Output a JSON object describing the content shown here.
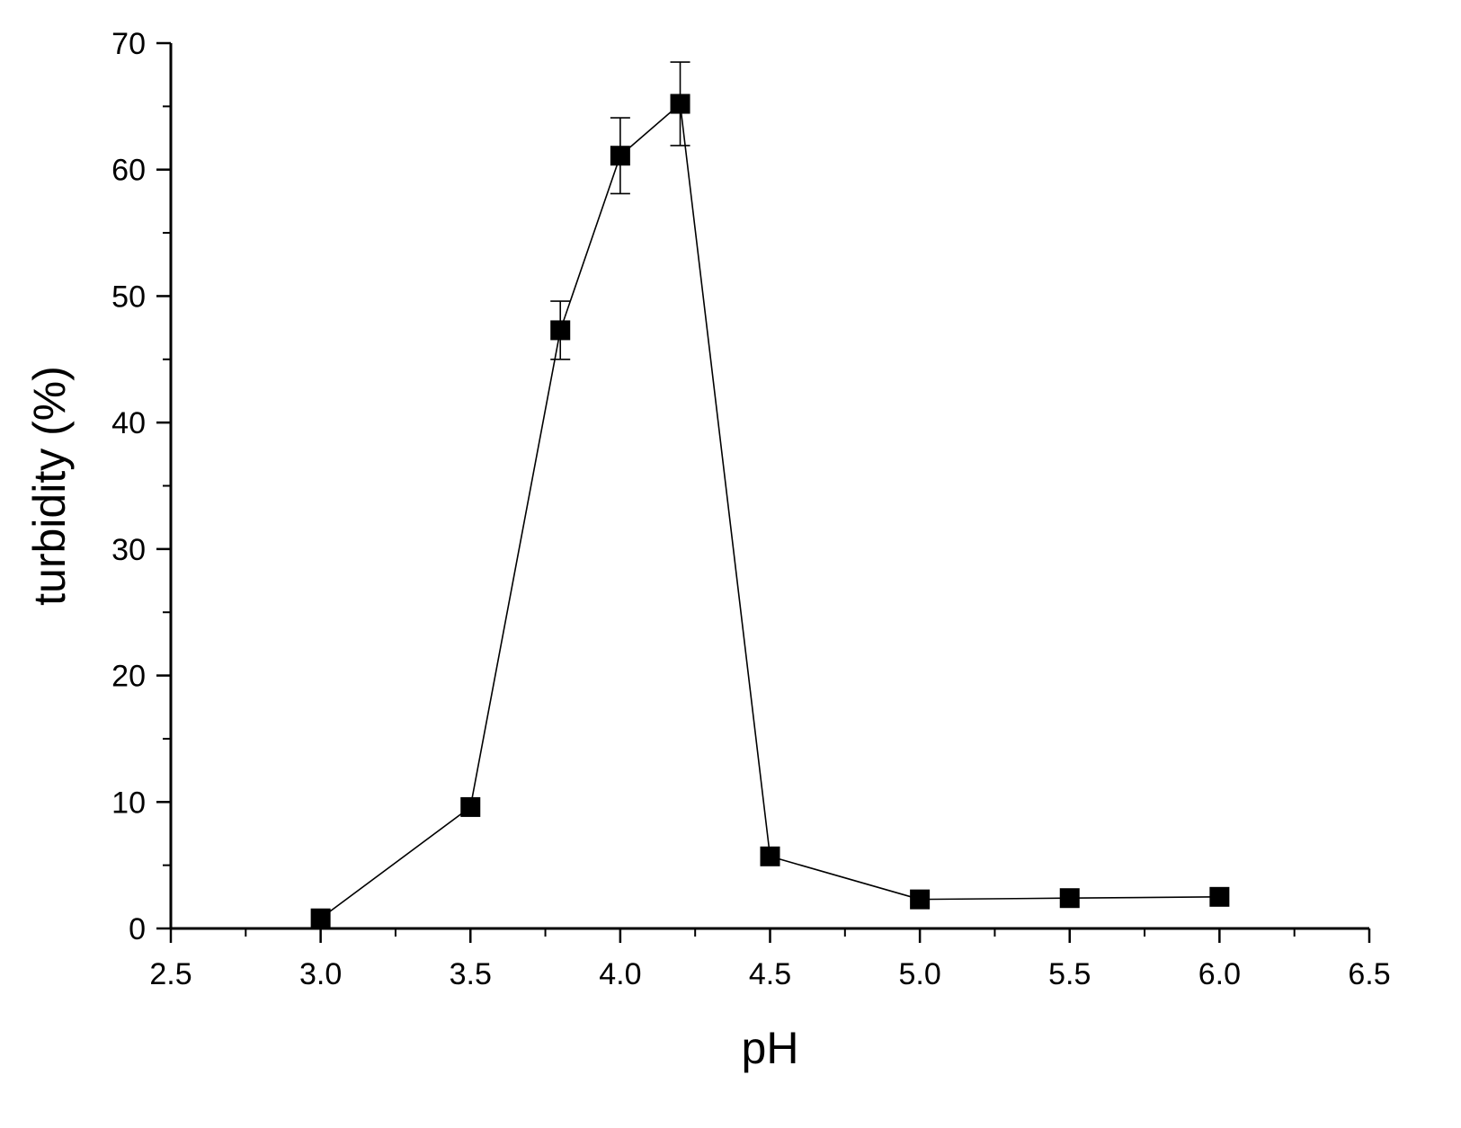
{
  "chart_data": {
    "type": "line",
    "title": "",
    "xlabel": "pH",
    "ylabel": "turbidity (%)",
    "xlim": [
      2.5,
      6.5
    ],
    "ylim": [
      0,
      70
    ],
    "x_major_ticks": [
      2.5,
      3.0,
      3.5,
      4.0,
      4.5,
      5.0,
      5.5,
      6.0,
      6.5
    ],
    "x_tick_labels": [
      "2.5",
      "3.0",
      "3.5",
      "4.0",
      "4.5",
      "5.0",
      "5.5",
      "6.0",
      "6.5"
    ],
    "y_major_ticks": [
      0,
      10,
      20,
      30,
      40,
      50,
      60,
      70
    ],
    "y_tick_labels": [
      "0",
      "10",
      "20",
      "30",
      "40",
      "50",
      "60",
      "70"
    ],
    "grid": false,
    "marker": "square",
    "color": "#000000",
    "series": [
      {
        "x": [
          3.0,
          3.5,
          3.8,
          4.0,
          4.2,
          4.5,
          5.0,
          5.5,
          6.0
        ],
        "y": [
          0.8,
          9.6,
          47.3,
          61.1,
          65.2,
          5.7,
          2.3,
          2.4,
          2.5
        ],
        "error": [
          0,
          0,
          2.3,
          3.0,
          3.3,
          0,
          0,
          0,
          0
        ]
      }
    ]
  }
}
